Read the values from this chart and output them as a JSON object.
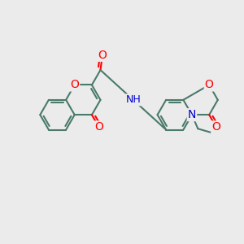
{
  "bg_color": "#ebebeb",
  "bond_color": "#4a7a6a",
  "bond_width": 1.5,
  "atom_colors": {
    "O": "#ff0000",
    "N": "#0000cc",
    "C": "#000000",
    "H": "#000000"
  },
  "font_size": 9,
  "fig_size": [
    3.0,
    3.0
  ],
  "dpi": 100,
  "ring_r": 0.72
}
